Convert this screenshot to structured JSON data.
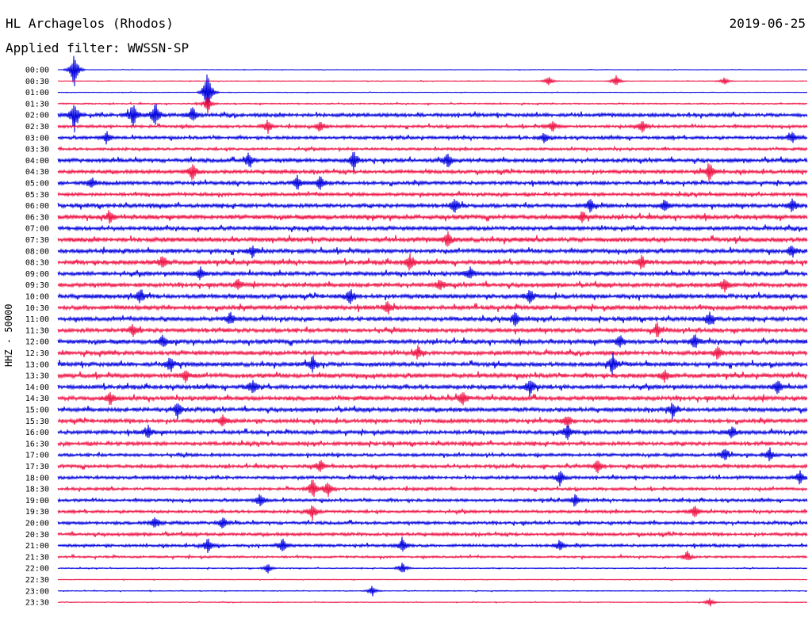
{
  "header": {
    "station": "HL Archagelos (Rhodos)",
    "filter": "Applied filter: WWSSN-SP",
    "date": "2019-06-25"
  },
  "chart_data": {
    "type": "line",
    "title": "HL Archagelos (Rhodos)",
    "subtitle": "Applied filter: WWSSN-SP",
    "date": "2019-06-25",
    "ylabel": "HHZ - 50000",
    "xlabel": "",
    "grid": false,
    "legend": "none",
    "trace_colors": [
      "#0000dd",
      "#ee1144"
    ],
    "trace_times": [
      "00:00",
      "00:30",
      "01:00",
      "01:30",
      "02:00",
      "02:30",
      "03:00",
      "03:30",
      "04:00",
      "04:30",
      "05:00",
      "05:30",
      "06:00",
      "06:30",
      "07:00",
      "07:30",
      "08:00",
      "08:30",
      "09:00",
      "09:30",
      "10:00",
      "10:30",
      "11:00",
      "11:30",
      "12:00",
      "12:30",
      "13:00",
      "13:30",
      "14:00",
      "14:30",
      "15:00",
      "15:30",
      "16:00",
      "16:30",
      "17:00",
      "17:30",
      "18:00",
      "18:30",
      "19:00",
      "19:30",
      "20:00",
      "20:30",
      "21:00",
      "21:30",
      "22:00",
      "22:30",
      "23:00",
      "23:30"
    ],
    "trace_noise_level": [
      0.1,
      0.12,
      0.12,
      0.25,
      0.7,
      0.55,
      0.6,
      0.5,
      0.75,
      0.7,
      0.7,
      0.65,
      0.75,
      0.85,
      0.75,
      0.9,
      0.8,
      0.85,
      0.8,
      0.8,
      0.85,
      0.85,
      0.8,
      0.8,
      0.85,
      0.8,
      0.85,
      0.85,
      0.8,
      0.85,
      0.8,
      0.75,
      0.75,
      0.7,
      0.6,
      0.65,
      0.6,
      0.55,
      0.55,
      0.55,
      0.6,
      0.6,
      0.55,
      0.4,
      0.2,
      0.15,
      0.15,
      0.15
    ],
    "events": [
      {
        "trace": 0,
        "t": 0.022,
        "amp": 5.0
      },
      {
        "trace": 1,
        "t": 0.655,
        "amp": 1.4
      },
      {
        "trace": 1,
        "t": 0.745,
        "amp": 1.4
      },
      {
        "trace": 1,
        "t": 0.89,
        "amp": 1.0
      },
      {
        "trace": 2,
        "t": 0.2,
        "amp": 6.5
      },
      {
        "trace": 3,
        "t": 0.2,
        "amp": 2.0
      },
      {
        "trace": 4,
        "t": 0.022,
        "amp": 4.0
      },
      {
        "trace": 4,
        "t": 0.1,
        "amp": 3.0
      },
      {
        "trace": 4,
        "t": 0.13,
        "amp": 3.0
      },
      {
        "trace": 4,
        "t": 0.18,
        "amp": 2.0
      },
      {
        "trace": 5,
        "t": 0.28,
        "amp": 1.5
      },
      {
        "trace": 5,
        "t": 0.35,
        "amp": 1.5
      },
      {
        "trace": 5,
        "t": 0.66,
        "amp": 1.5
      },
      {
        "trace": 5,
        "t": 0.78,
        "amp": 1.5
      },
      {
        "trace": 6,
        "t": 0.065,
        "amp": 1.5
      },
      {
        "trace": 6,
        "t": 0.65,
        "amp": 1.3
      },
      {
        "trace": 6,
        "t": 0.98,
        "amp": 1.3
      },
      {
        "trace": 8,
        "t": 0.255,
        "amp": 2.0
      },
      {
        "trace": 8,
        "t": 0.395,
        "amp": 2.2
      },
      {
        "trace": 8,
        "t": 0.52,
        "amp": 2.0
      },
      {
        "trace": 9,
        "t": 0.18,
        "amp": 2.0
      },
      {
        "trace": 9,
        "t": 0.87,
        "amp": 2.5
      },
      {
        "trace": 10,
        "t": 0.045,
        "amp": 1.5
      },
      {
        "trace": 10,
        "t": 0.32,
        "amp": 1.8
      },
      {
        "trace": 10,
        "t": 0.35,
        "amp": 1.8
      },
      {
        "trace": 12,
        "t": 0.53,
        "amp": 1.8
      },
      {
        "trace": 12,
        "t": 0.71,
        "amp": 1.6
      },
      {
        "trace": 12,
        "t": 0.81,
        "amp": 1.6
      },
      {
        "trace": 12,
        "t": 0.98,
        "amp": 1.6
      },
      {
        "trace": 13,
        "t": 0.07,
        "amp": 1.4
      },
      {
        "trace": 13,
        "t": 0.7,
        "amp": 1.4
      },
      {
        "trace": 15,
        "t": 0.52,
        "amp": 1.8
      },
      {
        "trace": 16,
        "t": 0.26,
        "amp": 1.6
      },
      {
        "trace": 16,
        "t": 0.98,
        "amp": 1.5
      },
      {
        "trace": 17,
        "t": 0.14,
        "amp": 1.8
      },
      {
        "trace": 17,
        "t": 0.47,
        "amp": 2.0
      },
      {
        "trace": 17,
        "t": 0.78,
        "amp": 1.5
      },
      {
        "trace": 18,
        "t": 0.19,
        "amp": 1.5
      },
      {
        "trace": 18,
        "t": 0.55,
        "amp": 1.5
      },
      {
        "trace": 19,
        "t": 0.24,
        "amp": 1.6
      },
      {
        "trace": 19,
        "t": 0.51,
        "amp": 1.5
      },
      {
        "trace": 19,
        "t": 0.89,
        "amp": 1.6
      },
      {
        "trace": 20,
        "t": 0.11,
        "amp": 1.8
      },
      {
        "trace": 20,
        "t": 0.39,
        "amp": 2.0
      },
      {
        "trace": 20,
        "t": 0.63,
        "amp": 1.8
      },
      {
        "trace": 21,
        "t": 0.44,
        "amp": 1.5
      },
      {
        "trace": 22,
        "t": 0.23,
        "amp": 1.6
      },
      {
        "trace": 22,
        "t": 0.61,
        "amp": 1.8
      },
      {
        "trace": 22,
        "t": 0.87,
        "amp": 1.8
      },
      {
        "trace": 23,
        "t": 0.1,
        "amp": 1.5
      },
      {
        "trace": 23,
        "t": 0.8,
        "amp": 1.5
      },
      {
        "trace": 24,
        "t": 0.14,
        "amp": 1.5
      },
      {
        "trace": 24,
        "t": 0.75,
        "amp": 1.5
      },
      {
        "trace": 24,
        "t": 0.85,
        "amp": 1.8
      },
      {
        "trace": 25,
        "t": 0.48,
        "amp": 1.5
      },
      {
        "trace": 25,
        "t": 0.88,
        "amp": 1.5
      },
      {
        "trace": 26,
        "t": 0.15,
        "amp": 2.0
      },
      {
        "trace": 26,
        "t": 0.34,
        "amp": 2.0
      },
      {
        "trace": 26,
        "t": 0.74,
        "amp": 2.5
      },
      {
        "trace": 27,
        "t": 0.17,
        "amp": 1.5
      },
      {
        "trace": 27,
        "t": 0.81,
        "amp": 1.5
      },
      {
        "trace": 28,
        "t": 0.26,
        "amp": 1.8
      },
      {
        "trace": 28,
        "t": 0.63,
        "amp": 2.2
      },
      {
        "trace": 28,
        "t": 0.96,
        "amp": 1.8
      },
      {
        "trace": 29,
        "t": 0.07,
        "amp": 1.5
      },
      {
        "trace": 29,
        "t": 0.54,
        "amp": 1.8
      },
      {
        "trace": 30,
        "t": 0.16,
        "amp": 2.0
      },
      {
        "trace": 30,
        "t": 0.82,
        "amp": 1.8
      },
      {
        "trace": 31,
        "t": 0.22,
        "amp": 1.6
      },
      {
        "trace": 31,
        "t": 0.68,
        "amp": 1.6
      },
      {
        "trace": 32,
        "t": 0.12,
        "amp": 1.6
      },
      {
        "trace": 32,
        "t": 0.68,
        "amp": 2.0
      },
      {
        "trace": 32,
        "t": 0.9,
        "amp": 1.6
      },
      {
        "trace": 34,
        "t": 0.89,
        "amp": 1.6
      },
      {
        "trace": 34,
        "t": 0.95,
        "amp": 1.5
      },
      {
        "trace": 35,
        "t": 0.35,
        "amp": 1.6
      },
      {
        "trace": 35,
        "t": 0.72,
        "amp": 1.6
      },
      {
        "trace": 36,
        "t": 0.67,
        "amp": 1.8
      },
      {
        "trace": 36,
        "t": 0.99,
        "amp": 1.6
      },
      {
        "trace": 37,
        "t": 0.34,
        "amp": 2.5
      },
      {
        "trace": 37,
        "t": 0.36,
        "amp": 2.0
      },
      {
        "trace": 38,
        "t": 0.27,
        "amp": 1.8
      },
      {
        "trace": 38,
        "t": 0.69,
        "amp": 1.5
      },
      {
        "trace": 39,
        "t": 0.34,
        "amp": 1.8
      },
      {
        "trace": 39,
        "t": 0.85,
        "amp": 1.6
      },
      {
        "trace": 40,
        "t": 0.13,
        "amp": 1.5
      },
      {
        "trace": 40,
        "t": 0.22,
        "amp": 1.5
      },
      {
        "trace": 42,
        "t": 0.2,
        "amp": 1.8
      },
      {
        "trace": 42,
        "t": 0.3,
        "amp": 1.8
      },
      {
        "trace": 42,
        "t": 0.46,
        "amp": 2.0
      },
      {
        "trace": 42,
        "t": 0.67,
        "amp": 1.5
      },
      {
        "trace": 43,
        "t": 0.84,
        "amp": 1.3
      },
      {
        "trace": 44,
        "t": 0.28,
        "amp": 1.2
      },
      {
        "trace": 44,
        "t": 0.46,
        "amp": 1.5
      },
      {
        "trace": 46,
        "t": 0.42,
        "amp": 1.2
      },
      {
        "trace": 47,
        "t": 0.87,
        "amp": 1.0
      }
    ]
  }
}
